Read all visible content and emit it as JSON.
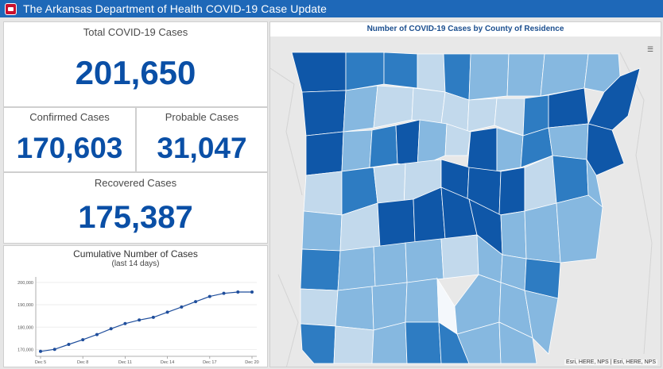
{
  "header": {
    "title": "The Arkansas Department of Health COVID-19 Case Update"
  },
  "stats": {
    "total": {
      "label": "Total COVID-19 Cases",
      "value": "201,650"
    },
    "confirmed": {
      "label": "Confirmed Cases",
      "value": "170,603"
    },
    "probable": {
      "label": "Probable Cases",
      "value": "31,047"
    },
    "recovered": {
      "label": "Recovered Cases",
      "value": "175,387"
    }
  },
  "chart_data": {
    "type": "line",
    "title": "Cumulative Number of Cases",
    "subtitle": "(last 14 days)",
    "x_ticks": [
      "Dec 5",
      "Dec 8",
      "Dec 11",
      "Dec 14",
      "Dec 17",
      "Dec 20"
    ],
    "x": [
      "Dec 5",
      "Dec 6",
      "Dec 7",
      "Dec 8",
      "Dec 9",
      "Dec 10",
      "Dec 11",
      "Dec 12",
      "Dec 13",
      "Dec 14",
      "Dec 15",
      "Dec 16",
      "Dec 17",
      "Dec 18",
      "Dec 19",
      "Dec 20"
    ],
    "values": [
      169200,
      170100,
      172300,
      174400,
      176700,
      179300,
      181600,
      183200,
      184400,
      186700,
      189000,
      191400,
      193700,
      195100,
      195700,
      195700
    ],
    "y_ticks": [
      "170,000",
      "180,000",
      "190,000",
      "200,000"
    ],
    "ylim": [
      167000,
      201000
    ],
    "color": "#1f4e9c"
  },
  "map": {
    "title": "Number of COVID-19 Cases by County of Residence",
    "attribution": "Esri, HERE, NPS | Esri, HERE, NPS",
    "legend_icon": "legend-list-icon"
  }
}
